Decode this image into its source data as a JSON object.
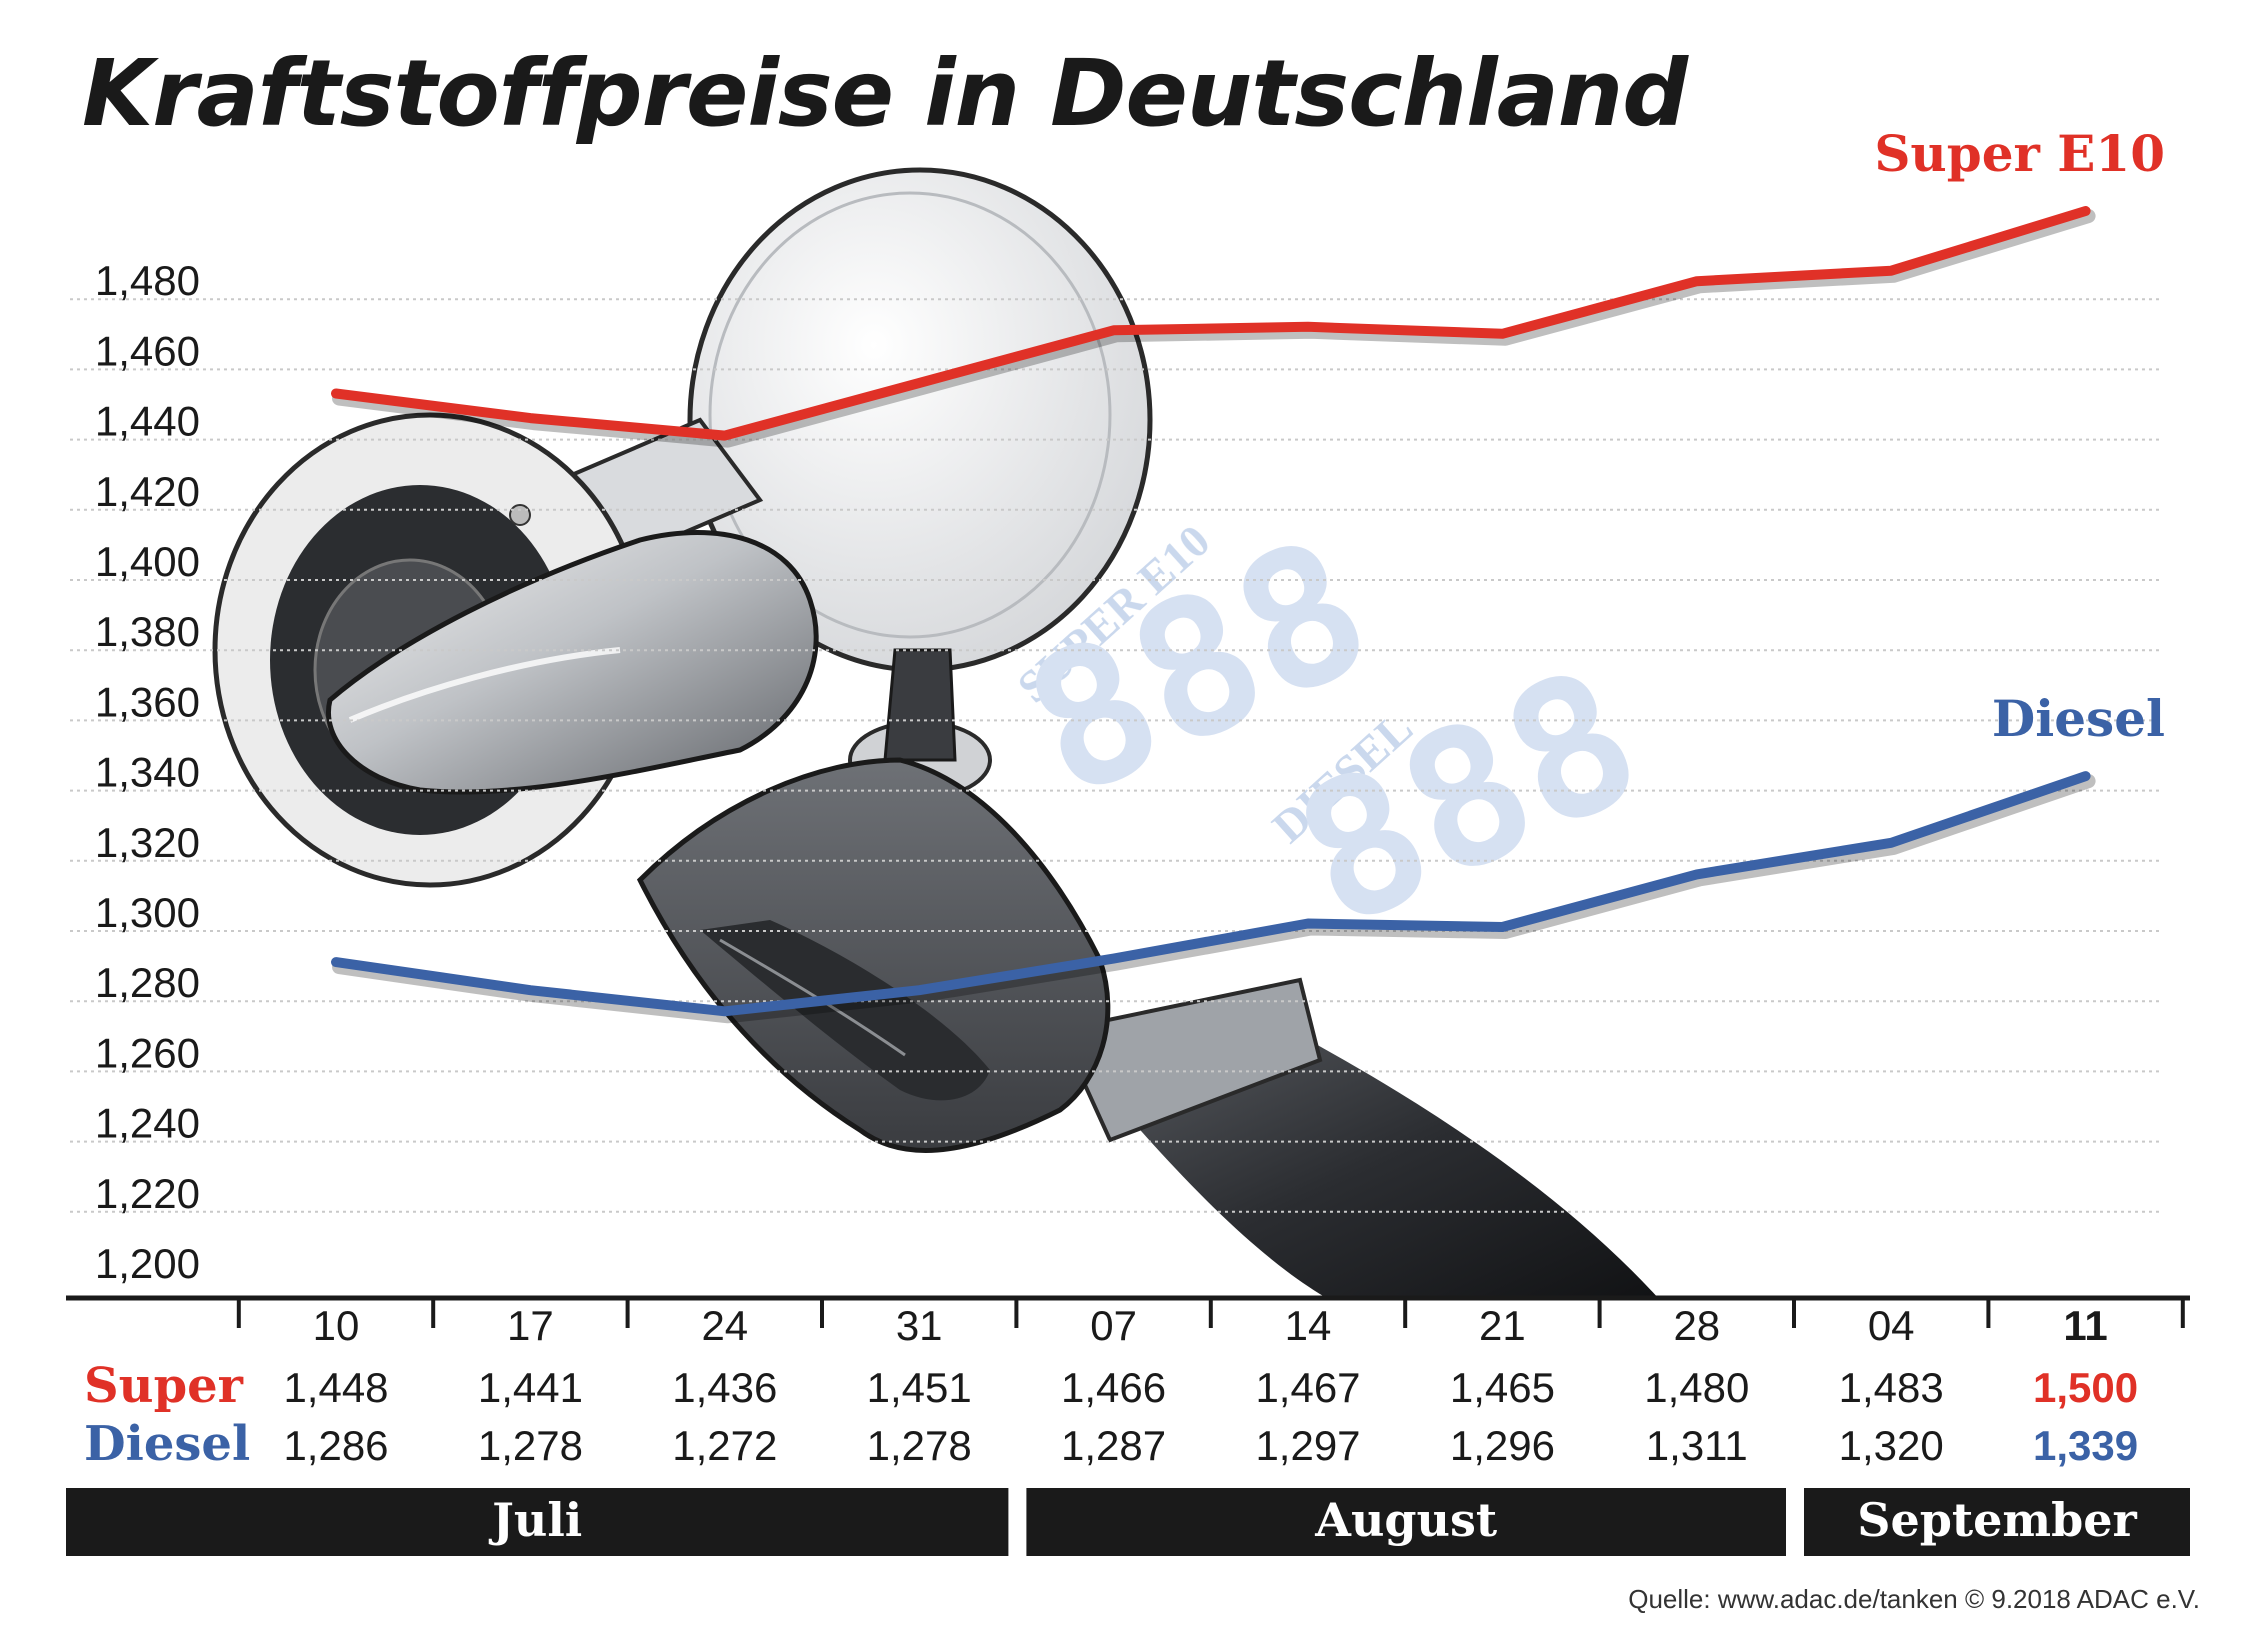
{
  "title": "Kraftstoffpreise in Deutschland",
  "source": "Quelle: www.adac.de/tanken   © 9.2018  ADAC e.V.",
  "illustration": {
    "panel_super_label": "SUPER E10",
    "panel_diesel_label": "DIESEL",
    "panel_digits": "888"
  },
  "chart_data": {
    "type": "line",
    "x": [
      "10",
      "17",
      "24",
      "31",
      "07",
      "14",
      "21",
      "28",
      "04",
      "11"
    ],
    "months": [
      {
        "label": "Juli",
        "weeks": [
          "10",
          "17",
          "24",
          "31"
        ]
      },
      {
        "label": "August",
        "weeks": [
          "07",
          "14",
          "21",
          "28"
        ]
      },
      {
        "label": "September",
        "weeks": [
          "04",
          "11"
        ]
      }
    ],
    "ylim": [
      1.2,
      1.5
    ],
    "yticks": [
      "1,200",
      "1,220",
      "1,240",
      "1,260",
      "1,280",
      "1,300",
      "1,320",
      "1,340",
      "1,360",
      "1,380",
      "1,400",
      "1,420",
      "1,440",
      "1,460",
      "1,480"
    ],
    "grid": true,
    "series": [
      {
        "name": "Super E10",
        "table_label": "Super",
        "color": "#e03127",
        "values": [
          1.448,
          1.441,
          1.436,
          1.451,
          1.466,
          1.467,
          1.465,
          1.48,
          1.483,
          1.5
        ],
        "labels": [
          "1,448",
          "1,441",
          "1,436",
          "1,451",
          "1,466",
          "1,467",
          "1,465",
          "1,480",
          "1,483",
          "1,500"
        ]
      },
      {
        "name": "Diesel",
        "table_label": "Diesel",
        "color": "#3b62a6",
        "values": [
          1.286,
          1.278,
          1.272,
          1.278,
          1.287,
          1.297,
          1.296,
          1.311,
          1.32,
          1.339
        ],
        "labels": [
          "1,286",
          "1,278",
          "1,272",
          "1,278",
          "1,287",
          "1,297",
          "1,296",
          "1,311",
          "1,320",
          "1,339"
        ]
      }
    ]
  }
}
